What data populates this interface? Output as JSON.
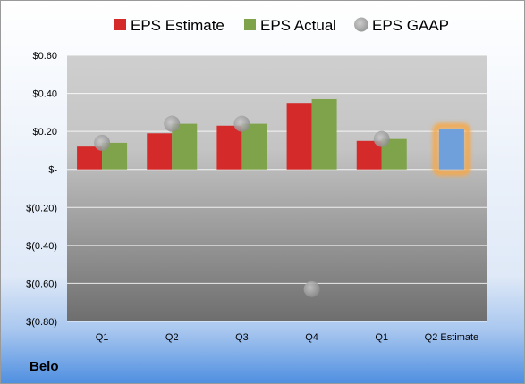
{
  "chart_data": {
    "type": "bar",
    "title": "",
    "xlabel": "",
    "ylabel": "",
    "categories": [
      "Q1",
      "Q2",
      "Q3",
      "Q4",
      "Q1",
      "Q2 Estimate"
    ],
    "series": [
      {
        "name": "EPS Estimate",
        "kind": "bar",
        "color": "#d42a2a",
        "values": [
          0.12,
          0.19,
          0.23,
          0.35,
          0.15,
          null
        ]
      },
      {
        "name": "EPS Actual",
        "kind": "bar",
        "color": "#7fa34a",
        "values": [
          0.14,
          0.24,
          0.24,
          0.37,
          0.16,
          null
        ]
      },
      {
        "name": "EPS GAAP",
        "kind": "marker",
        "color": "#a9a9a9",
        "values": [
          0.14,
          0.24,
          0.24,
          -0.63,
          0.16,
          null
        ]
      }
    ],
    "forecast": {
      "category": "Q2 Estimate",
      "value": 0.21,
      "color": "#6fa0db",
      "glow_color": "#f5a84a"
    },
    "ylim": [
      -0.8,
      0.6
    ],
    "yticks": [
      0.6,
      0.4,
      0.2,
      0,
      -0.2,
      -0.4,
      -0.6,
      -0.8
    ],
    "ytick_labels": [
      "$0.60",
      "$0.40",
      "$0.20",
      "$-",
      "$(0.20)",
      "$(0.40)",
      "$(0.60)",
      "$(0.80)"
    ],
    "grid": true,
    "legend_position": "top"
  },
  "company": "Belo"
}
